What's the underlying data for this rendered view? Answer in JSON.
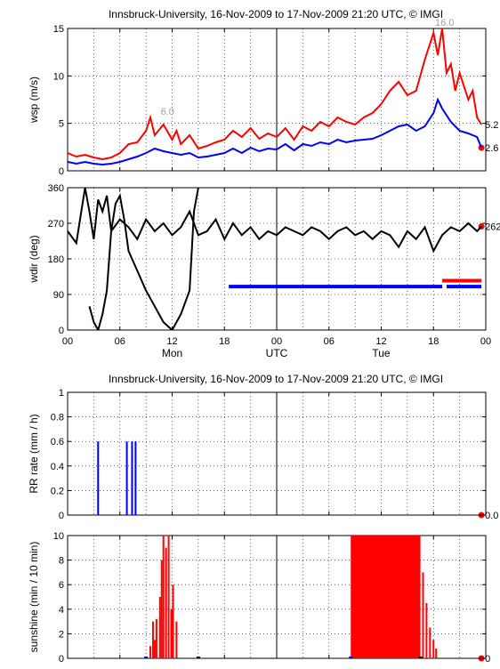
{
  "colors": {
    "red": "#ff0000",
    "blue": "#0000ff",
    "black": "#000000",
    "gray": "#a0a0a0"
  },
  "figure": {
    "title_top": "Innsbruck-University, 16-Nov-2009 to 17-Nov-2009 21:20 UTC, © IMGI",
    "title_bottom": "Innsbruck-University, 16-Nov-2009 to 17-Nov-2009 21:20 UTC, © IMGI",
    "x_tick_labels": [
      "00",
      "06",
      "12",
      "18",
      "00",
      "06",
      "12",
      "18",
      "00"
    ],
    "day_labels": [
      "Mon",
      "UTC",
      "Tue"
    ]
  },
  "chart_data": [
    {
      "type": "line",
      "ylabel": "wsp (m/s)",
      "x_unit": "hours since 16-Nov-2009 00:00 UTC",
      "xlim": [
        0,
        48
      ],
      "ylim": [
        0,
        16
      ],
      "yticks": [
        "0",
        "5",
        "10",
        "15"
      ],
      "grid": true,
      "series": [
        {
          "color": "#ff0000",
          "x": [
            0,
            1,
            2,
            3,
            4,
            5,
            6,
            7,
            8,
            9,
            9.5,
            10,
            11,
            12,
            12.5,
            13,
            14,
            15,
            16,
            17,
            18,
            19,
            20,
            21,
            22,
            23,
            24,
            25,
            26,
            27,
            28,
            29,
            30,
            31,
            32,
            33,
            34,
            35,
            36,
            37,
            38,
            39,
            40,
            41,
            42,
            42.5,
            43,
            43.5,
            44,
            44.5,
            45,
            46,
            46.5,
            47,
            47.5
          ],
          "y": [
            2.0,
            1.6,
            1.8,
            1.5,
            1.3,
            1.5,
            2.0,
            3.0,
            3.2,
            4.5,
            6.0,
            4.0,
            5.2,
            3.5,
            4.5,
            3.0,
            4.0,
            2.5,
            2.8,
            3.2,
            3.5,
            4.5,
            3.8,
            4.8,
            3.6,
            4.2,
            3.8,
            4.8,
            3.5,
            5.0,
            4.5,
            5.5,
            5.0,
            6.0,
            5.5,
            5.2,
            6.0,
            6.5,
            7.5,
            9.0,
            10.0,
            8.5,
            9.0,
            12.5,
            15.5,
            13.0,
            16.0,
            11.0,
            12.0,
            9.0,
            11.0,
            8.0,
            9.0,
            6.0,
            5.2
          ]
        },
        {
          "color": "#0000ff",
          "x": [
            0,
            1,
            2,
            3,
            4,
            5,
            6,
            7,
            8,
            9,
            10,
            11,
            12,
            13,
            14,
            15,
            16,
            17,
            18,
            19,
            20,
            21,
            22,
            23,
            24,
            25,
            26,
            27,
            28,
            29,
            30,
            31,
            32,
            33,
            34,
            35,
            36,
            37,
            38,
            39,
            40,
            41,
            42,
            42.5,
            43,
            44,
            45,
            46,
            47,
            47.5
          ],
          "y": [
            1.0,
            0.8,
            1.0,
            0.8,
            0.7,
            0.8,
            1.0,
            1.3,
            1.6,
            2.0,
            2.5,
            2.2,
            2.0,
            1.8,
            2.0,
            1.5,
            1.6,
            1.8,
            2.0,
            2.5,
            2.0,
            2.6,
            2.2,
            2.5,
            2.4,
            3.0,
            2.3,
            3.0,
            2.8,
            3.2,
            3.0,
            3.5,
            3.2,
            3.4,
            3.5,
            3.6,
            4.0,
            4.5,
            5.0,
            5.2,
            4.5,
            5.0,
            6.5,
            8.0,
            7.0,
            5.5,
            4.5,
            4.2,
            3.8,
            2.6
          ]
        }
      ],
      "annotations": [
        {
          "text": "6.0",
          "x": 11.5,
          "y": 6.0,
          "color": "#a0a0a0"
        },
        {
          "text": "16.0",
          "x": 43.0,
          "y": 16.0,
          "color": "#a0a0a0"
        },
        {
          "text": "5.2",
          "x": 47.5,
          "y": 5.2,
          "color": "#000000"
        },
        {
          "text": "2.6",
          "x": 47.5,
          "y": 2.6,
          "color": "#000000"
        }
      ],
      "end_marker": {
        "x": 47.5,
        "y": 2.6,
        "color": "#ff0000"
      }
    },
    {
      "type": "line",
      "ylabel": "wdir (deg)",
      "xlim": [
        0,
        48
      ],
      "ylim": [
        0,
        360
      ],
      "yticks": [
        "0",
        "90",
        "180",
        "270",
        "360"
      ],
      "grid": true,
      "series": [
        {
          "color": "#000000",
          "x": [
            0,
            1,
            1.5,
            2,
            2.5,
            3,
            3.5,
            4,
            4.5,
            5,
            6,
            7,
            8,
            9,
            10,
            11,
            12,
            13,
            14,
            15,
            16,
            17,
            18,
            19,
            20,
            21,
            22,
            23,
            24,
            25,
            26,
            27,
            28,
            29,
            30,
            31,
            32,
            33,
            34,
            35,
            36,
            37,
            38,
            39,
            40,
            41,
            42,
            43,
            44,
            45,
            46,
            47,
            47.5
          ],
          "y": [
            250,
            220,
            290,
            360,
            300,
            230,
            330,
            300,
            340,
            250,
            280,
            260,
            230,
            280,
            250,
            270,
            240,
            260,
            300,
            240,
            250,
            280,
            230,
            270,
            240,
            260,
            230,
            250,
            240,
            260,
            250,
            240,
            260,
            250,
            230,
            250,
            260,
            240,
            250,
            230,
            250,
            240,
            210,
            250,
            230,
            260,
            200,
            240,
            260,
            250,
            270,
            250,
            262
          ]
        },
        {
          "color": "#000000",
          "x": [
            2.5,
            3,
            3.5,
            4,
            4.5,
            5,
            5.5,
            6,
            6.5,
            7,
            8,
            9,
            10,
            11,
            12,
            13,
            14,
            14.5,
            15
          ],
          "y": [
            60,
            20,
            0,
            40,
            100,
            250,
            320,
            340,
            280,
            200,
            150,
            100,
            60,
            20,
            0,
            40,
            100,
            300,
            360
          ]
        }
      ],
      "bars": [
        {
          "x0": 18.5,
          "x1": 43.0,
          "y": 110,
          "color": "#0000ff"
        },
        {
          "x0": 43.0,
          "x1": 47.5,
          "y": 125,
          "color": "#ff0000"
        },
        {
          "x0": 43.5,
          "x1": 47.5,
          "y": 110,
          "color": "#0000ff"
        }
      ],
      "annotations": [
        {
          "text": "262",
          "x": 47.5,
          "y": 262,
          "color": "#000000"
        }
      ],
      "end_marker": {
        "x": 47.5,
        "y": 262,
        "color": "#ff0000"
      }
    },
    {
      "type": "bar",
      "ylabel": "RR rate (mm / h)",
      "xlim": [
        0,
        48
      ],
      "ylim": [
        0,
        1
      ],
      "yticks": [
        "0",
        "0.2",
        "0.4",
        "0.6",
        "0.8",
        "1"
      ],
      "grid": true,
      "bars": [
        {
          "x": 3.5,
          "value": 0.6,
          "color": "#0000ff"
        },
        {
          "x": 6.8,
          "value": 0.6,
          "color": "#0000ff"
        },
        {
          "x": 7.4,
          "value": 0.6,
          "color": "#0000ff"
        },
        {
          "x": 7.8,
          "value": 0.6,
          "color": "#0000ff"
        }
      ],
      "annotations": [
        {
          "text": "0.0",
          "x": 47.5,
          "y": 0,
          "color": "#000000"
        }
      ],
      "end_marker": {
        "x": 47.5,
        "y": 0,
        "color": "#ff0000"
      }
    },
    {
      "type": "bar",
      "ylabel": "sunshine (min / 10 min)",
      "xlim": [
        0,
        48
      ],
      "ylim": [
        0,
        10
      ],
      "yticks": [
        "0",
        "2",
        "4",
        "6",
        "8",
        "10"
      ],
      "grid": true,
      "bars": [
        {
          "x": 9.5,
          "value": 1.0,
          "color": "#ff0000"
        },
        {
          "x": 9.8,
          "value": 3.0,
          "color": "#ff0000"
        },
        {
          "x": 10.0,
          "value": 1.5,
          "color": "#ff0000"
        },
        {
          "x": 10.2,
          "value": 3.2,
          "color": "#ff0000"
        },
        {
          "x": 10.6,
          "value": 5.0,
          "color": "#ff0000"
        },
        {
          "x": 10.8,
          "value": 8.0,
          "color": "#ff0000"
        },
        {
          "x": 11.0,
          "value": 10.0,
          "color": "#ff0000"
        },
        {
          "x": 11.3,
          "value": 9.0,
          "color": "#ff0000"
        },
        {
          "x": 11.6,
          "value": 10.0,
          "color": "#ff0000"
        },
        {
          "x": 11.9,
          "value": 4.0,
          "color": "#ff0000"
        },
        {
          "x": 12.1,
          "value": 6.0,
          "color": "#ff0000"
        },
        {
          "x": 12.5,
          "value": 3.0,
          "color": "#ff0000"
        }
      ],
      "filled_block": {
        "x0": 32.5,
        "x1": 40.5,
        "value": 10.0,
        "color": "#ff0000"
      },
      "sparse_bars": [
        {
          "x": 40.8,
          "value": 7.0,
          "color": "#ff0000"
        },
        {
          "x": 41.2,
          "value": 4.5,
          "color": "#ff0000"
        },
        {
          "x": 41.6,
          "value": 2.5,
          "color": "#ff0000"
        },
        {
          "x": 42.0,
          "value": 1.5,
          "color": "#ff0000"
        },
        {
          "x": 42.3,
          "value": 0.8,
          "color": "#ff0000"
        }
      ],
      "markers": [
        {
          "x": 9.0,
          "color": "#0000ff"
        },
        {
          "x": 15.0,
          "color": "#000000"
        },
        {
          "x": 32.5,
          "color": "#0000ff"
        },
        {
          "x": 40.5,
          "color": "#000000"
        }
      ],
      "annotations": [
        {
          "text": "0",
          "x": 47.5,
          "y": 0,
          "color": "#000000"
        }
      ],
      "end_marker": {
        "x": 47.5,
        "y": 0,
        "color": "#ff0000"
      }
    }
  ]
}
